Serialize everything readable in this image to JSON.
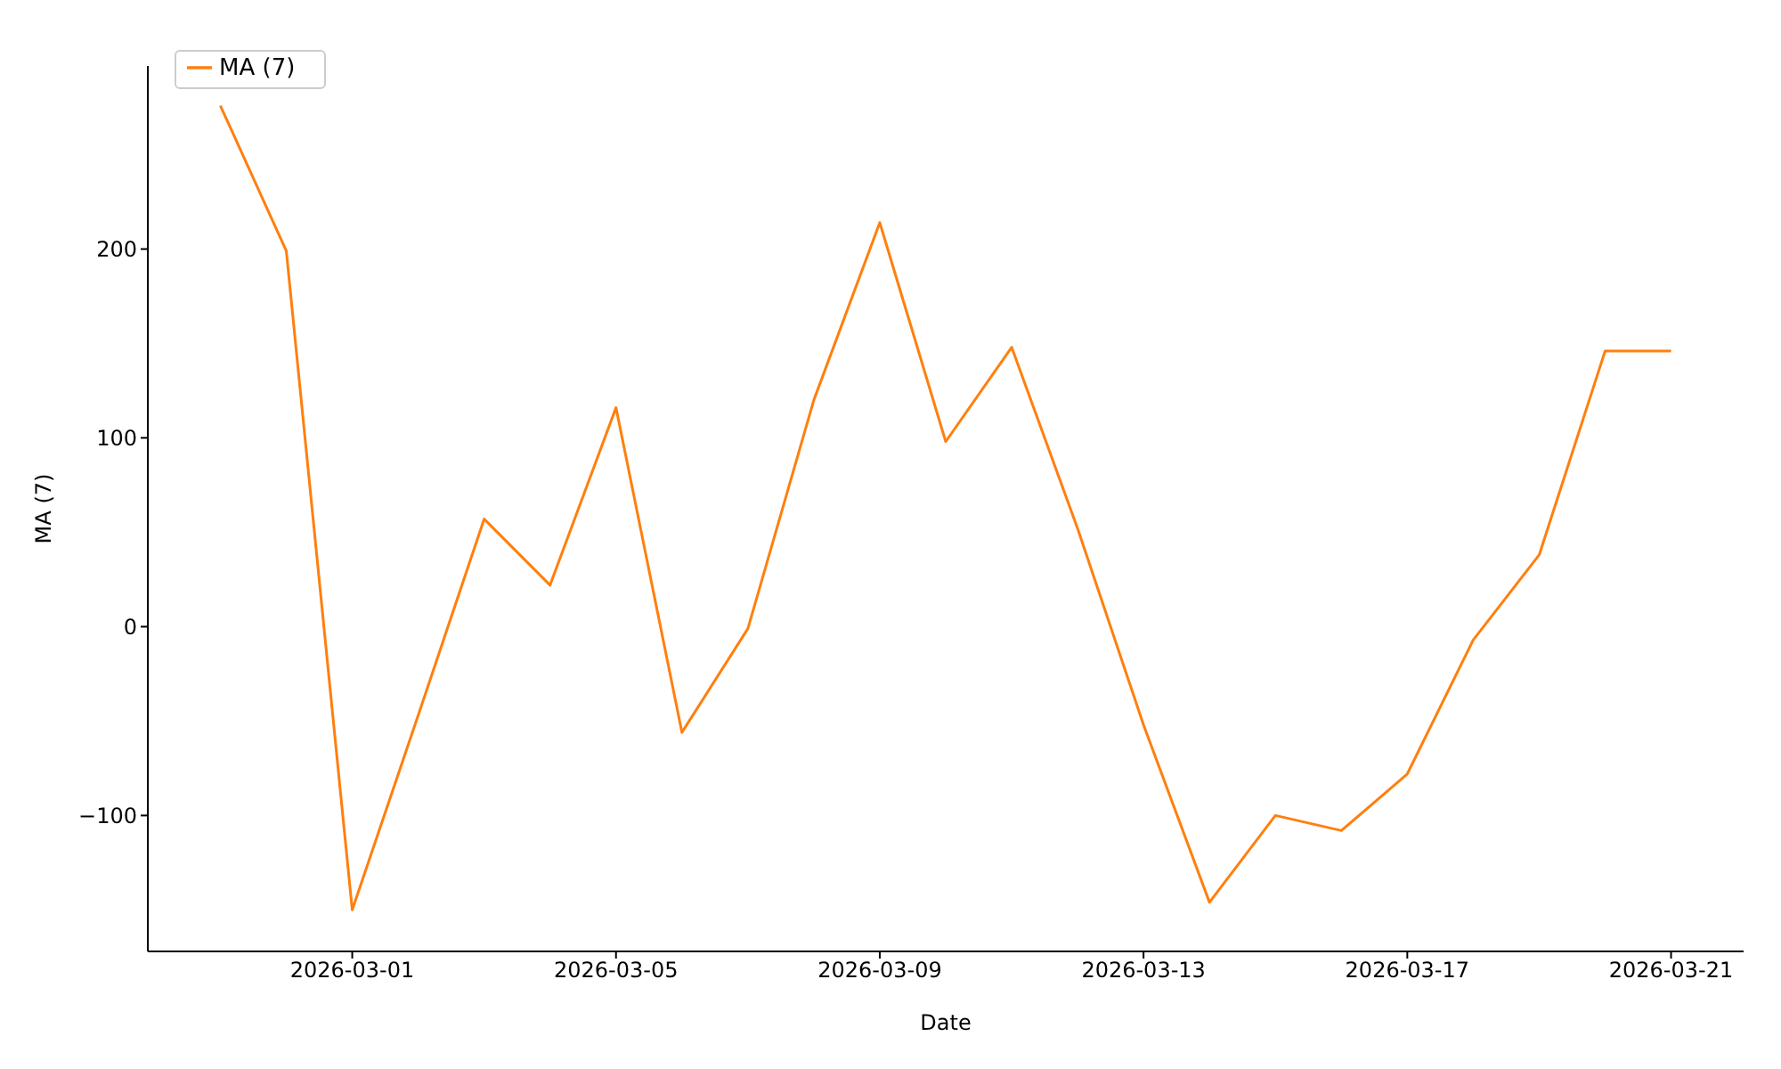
{
  "chart_data": {
    "type": "line",
    "xlabel": "Date",
    "ylabel": "MA (7)",
    "x": [
      "2026-02-27",
      "2026-02-28",
      "2026-03-01",
      "2026-03-02",
      "2026-03-03",
      "2026-03-04",
      "2026-03-05",
      "2026-03-06",
      "2026-03-07",
      "2026-03-08",
      "2026-03-09",
      "2026-03-10",
      "2026-03-11",
      "2026-03-12",
      "2026-03-13",
      "2026-03-14",
      "2026-03-15",
      "2026-03-16",
      "2026-03-17",
      "2026-03-18",
      "2026-03-19",
      "2026-03-20",
      "2026-03-21"
    ],
    "series": [
      {
        "name": "MA (7)",
        "color": "#ff7f0e",
        "values": [
          276,
          199,
          -150,
          -47,
          57,
          22,
          116,
          -56,
          -1,
          120,
          214,
          98,
          148,
          52,
          -52,
          -146,
          -100,
          -108,
          -78,
          -7,
          38,
          146,
          146
        ]
      }
    ],
    "xlim": [
      "2026-02-25T21:36",
      "2026-03-22T02:24"
    ],
    "xticks": [
      "2026-03-01",
      "2026-03-05",
      "2026-03-09",
      "2026-03-13",
      "2026-03-17",
      "2026-03-21"
    ],
    "ylim": [
      -172,
      297
    ],
    "yticks": [
      -100,
      0,
      100,
      200
    ],
    "legend": "top left",
    "grid": false,
    "marker": "none",
    "line_style": "solid"
  }
}
